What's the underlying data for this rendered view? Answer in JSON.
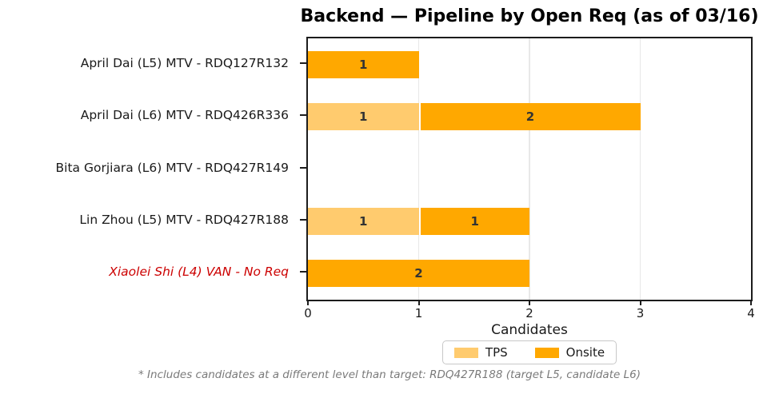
{
  "chart_data": {
    "type": "bar",
    "orientation": "horizontal",
    "stacked": true,
    "title": "Backend — Pipeline by Open Req (as of 03/16)",
    "xlabel": "Candidates",
    "ylabel": "",
    "xlim": [
      0,
      4
    ],
    "xticks": [
      0,
      1,
      2,
      3,
      4
    ],
    "grid": true,
    "legend_position": "below-axis-centered",
    "categories": [
      "April Dai (L5) MTV - RDQ127R132",
      "April Dai (L6) MTV - RDQ426R336",
      "Bita Gorjiara (L6) MTV - RDQ427R149",
      "Lin Zhou (L5) MTV - RDQ427R188",
      "Xiaolei Shi (L4) VAN - No Req"
    ],
    "category_styles": [
      {
        "color": "#1a1a1a",
        "italic": false
      },
      {
        "color": "#1a1a1a",
        "italic": false
      },
      {
        "color": "#1a1a1a",
        "italic": false
      },
      {
        "color": "#1a1a1a",
        "italic": false
      },
      {
        "color": "#cc0000",
        "italic": true
      }
    ],
    "series": [
      {
        "name": "TPS",
        "color": "#ffcb6e",
        "values": [
          0,
          1,
          0,
          1,
          0
        ]
      },
      {
        "name": "Onsite",
        "color": "#ffa800",
        "values": [
          1,
          2,
          0,
          1,
          2
        ]
      }
    ],
    "bar_label_color": "#333333",
    "footnote": "* Includes candidates at a different level than target: RDQ427R188 (target L5, candidate L6)"
  }
}
